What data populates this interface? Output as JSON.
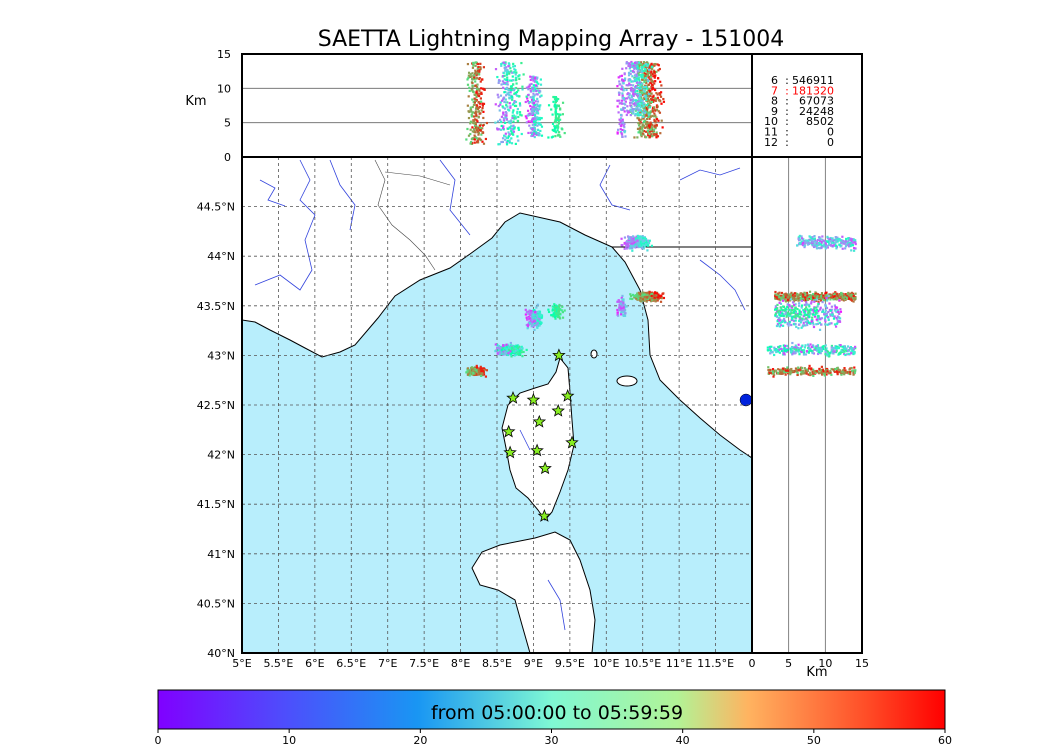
{
  "title": "SAETTA Lightning Mapping Array - 151004",
  "colors": {
    "sea": "#b8eefc",
    "land": "#ffffff",
    "river": "#3344dd",
    "station": "#88ee22"
  },
  "top_panel": {
    "ylabel": "Km",
    "yticks": [
      "0",
      "5",
      "10",
      "15"
    ]
  },
  "right_panel": {
    "xlabel": "Km",
    "xticks": [
      "0",
      "5",
      "10",
      "15"
    ]
  },
  "stats": [
    {
      "label": "6",
      "value": "546911",
      "highlight": false
    },
    {
      "label": "7",
      "value": "181320",
      "highlight": true
    },
    {
      "label": "8",
      "value": "67073",
      "highlight": false
    },
    {
      "label": "9",
      "value": "24248",
      "highlight": false
    },
    {
      "label": "10",
      "value": "8502",
      "highlight": false
    },
    {
      "label": "11",
      "value": "0",
      "highlight": false
    },
    {
      "label": "12",
      "value": "0",
      "highlight": false
    }
  ],
  "colorbar": {
    "label": "from 05:00:00 to 05:59:59",
    "ticks": [
      "0",
      "10",
      "20",
      "30",
      "40",
      "50",
      "60"
    ]
  },
  "chart_data": {
    "type": "scatter",
    "title": "SAETTA Lightning Mapping Array - 151004",
    "map": {
      "lon_range": [
        5.0,
        12.0
      ],
      "lat_range": [
        40.0,
        45.0
      ],
      "lon_ticks": [
        "5°E",
        "5.5°E",
        "6°E",
        "6.5°E",
        "7°E",
        "7.5°E",
        "8°E",
        "8.5°E",
        "9°E",
        "9.5°E",
        "10°E",
        "10.5°E",
        "11°E",
        "11.5°E"
      ],
      "lat_ticks": [
        "40°N",
        "40.5°N",
        "41°N",
        "41.5°N",
        "42°N",
        "42.5°N",
        "43°N",
        "43.5°N",
        "44°N",
        "44.5°N"
      ],
      "grid": true
    },
    "altitude_range_km": [
      0,
      15
    ],
    "color_scale": {
      "variable": "time (minutes)",
      "range": [
        0,
        60
      ],
      "colormap": "rainbow"
    },
    "clusters": [
      {
        "lon": 10.55,
        "lat": 43.6,
        "lon_spread": 0.22,
        "lat_spread": 0.06,
        "alt": [
          3,
          14
        ],
        "time": [
          38,
          60
        ],
        "points": 440
      },
      {
        "lon": 10.4,
        "lat": 44.15,
        "lon_spread": 0.2,
        "lat_spread": 0.1,
        "alt": [
          6,
          14
        ],
        "time": [
          5,
          28
        ],
        "points": 240
      },
      {
        "lon": 10.2,
        "lat": 43.5,
        "lon_spread": 0.08,
        "lat_spread": 0.12,
        "alt": [
          3,
          12
        ],
        "time": [
          2,
          20
        ],
        "points": 80
      },
      {
        "lon": 9.0,
        "lat": 43.38,
        "lon_spread": 0.12,
        "lat_spread": 0.15,
        "alt": [
          3,
          12
        ],
        "time": [
          2,
          30
        ],
        "points": 200
      },
      {
        "lon": 9.3,
        "lat": 43.45,
        "lon_spread": 0.1,
        "lat_spread": 0.1,
        "alt": [
          3,
          9
        ],
        "time": [
          30,
          40
        ],
        "points": 80
      },
      {
        "lon": 8.65,
        "lat": 43.07,
        "lon_spread": 0.22,
        "lat_spread": 0.08,
        "alt": [
          2,
          14
        ],
        "time": [
          5,
          38
        ],
        "points": 260
      },
      {
        "lon": 8.2,
        "lat": 42.85,
        "lon_spread": 0.14,
        "lat_spread": 0.06,
        "alt": [
          2,
          14
        ],
        "time": [
          40,
          60
        ],
        "points": 240
      }
    ],
    "stations": [
      {
        "lon": 9.35,
        "lat": 43.0
      },
      {
        "lon": 8.72,
        "lat": 42.57
      },
      {
        "lon": 9.0,
        "lat": 42.55
      },
      {
        "lon": 9.47,
        "lat": 42.59
      },
      {
        "lon": 9.34,
        "lat": 42.44
      },
      {
        "lon": 9.08,
        "lat": 42.33
      },
      {
        "lon": 8.66,
        "lat": 42.23
      },
      {
        "lon": 9.53,
        "lat": 42.12
      },
      {
        "lon": 8.68,
        "lat": 42.02
      },
      {
        "lon": 9.05,
        "lat": 42.04
      },
      {
        "lon": 9.16,
        "lat": 41.86
      },
      {
        "lon": 9.15,
        "lat": 41.38
      }
    ]
  }
}
